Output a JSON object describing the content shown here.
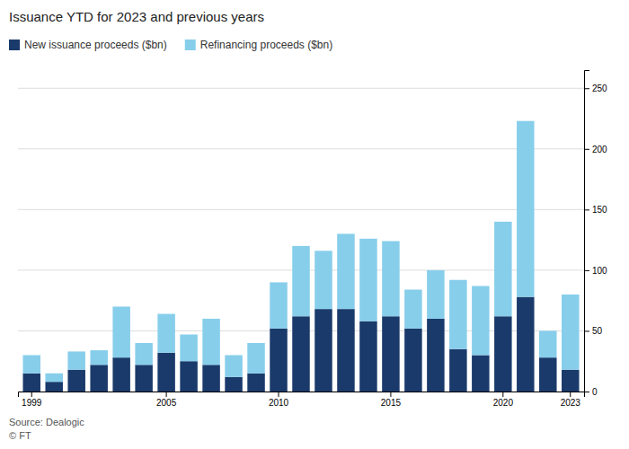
{
  "chart_data": {
    "type": "bar",
    "title": "Issuance YTD for 2023 and previous years",
    "categories": [
      "1999",
      null,
      null,
      null,
      null,
      null,
      "2005",
      null,
      null,
      null,
      null,
      "2010",
      null,
      null,
      null,
      null,
      "2015",
      null,
      null,
      null,
      null,
      "2020",
      null,
      null,
      "2023"
    ],
    "series": [
      {
        "name": "New issuance proceeds ($bn)",
        "color": "#1a3a6b",
        "values": [
          15,
          8,
          18,
          22,
          28,
          22,
          32,
          25,
          22,
          12,
          15,
          52,
          62,
          68,
          68,
          58,
          62,
          52,
          60,
          35,
          30,
          62,
          78,
          28,
          18
        ]
      },
      {
        "name": "Refinancing proceeds ($bn)",
        "color": "#87ceeb",
        "values": [
          15,
          7,
          15,
          12,
          42,
          18,
          32,
          22,
          38,
          18,
          25,
          38,
          58,
          48,
          62,
          68,
          62,
          32,
          40,
          57,
          57,
          78,
          145,
          22,
          62
        ]
      }
    ],
    "stacked": true,
    "ylim": [
      0,
      265
    ],
    "yticks": [
      0,
      50,
      100,
      150,
      200,
      250
    ],
    "grid": true,
    "legend": "top",
    "annotations": [
      "Source: Dealogic",
      "© FT"
    ]
  }
}
